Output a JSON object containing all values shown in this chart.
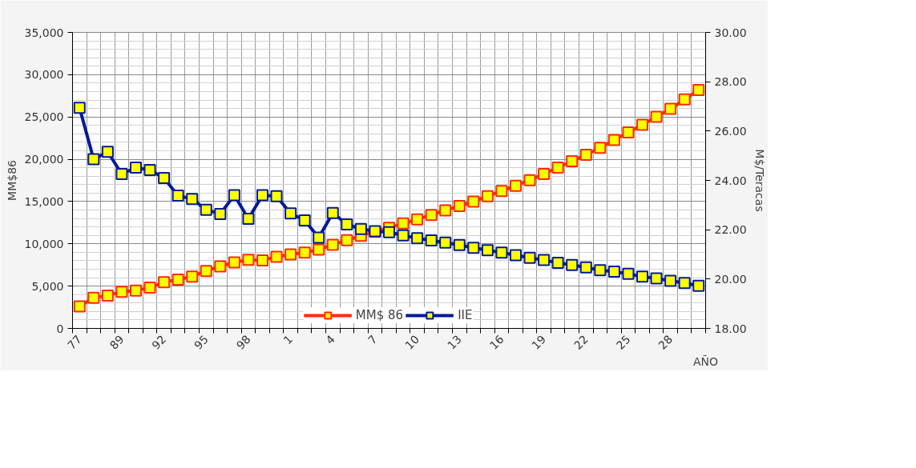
{
  "chart_data": {
    "type": "line",
    "categories": [
      "77",
      null,
      null,
      "89",
      null,
      null,
      "92",
      null,
      null,
      "95",
      null,
      null,
      "98",
      null,
      null,
      "1",
      null,
      null,
      "4",
      null,
      null,
      "7",
      null,
      null,
      "10",
      null,
      null,
      "13",
      null,
      null,
      "16",
      null,
      null,
      "19",
      null,
      null,
      "22",
      null,
      null,
      "25",
      null,
      null,
      "28",
      null,
      null
    ],
    "xlabel": "AÑO",
    "ylabel": "MM$86",
    "y2label": "M$/Teracas",
    "series": [
      {
        "name": "MM$ 86",
        "color": "#ff2a00",
        "values": [
          2590,
          3630,
          3890,
          4330,
          4480,
          4830,
          5460,
          5780,
          6130,
          6790,
          7330,
          7800,
          8120,
          8050,
          8470,
          8750,
          8970,
          9320,
          9890,
          10420,
          10960,
          11430,
          11900,
          12410,
          12890,
          13420,
          13960,
          14470,
          15000,
          15640,
          16240,
          16870,
          17530,
          18260,
          19010,
          19770,
          20530,
          21350,
          22270,
          23180,
          24070,
          25020,
          25960,
          27070,
          28180
        ]
      },
      {
        "name": "IIE",
        "color": "#001a99",
        "axis": "y2",
        "values": [
          26.94,
          24.86,
          25.16,
          24.26,
          24.52,
          24.42,
          24.1,
          23.38,
          23.25,
          22.81,
          22.64,
          23.4,
          22.44,
          23.4,
          23.36,
          22.66,
          22.38,
          21.68,
          22.68,
          22.22,
          22.03,
          21.94,
          21.9,
          21.77,
          21.66,
          21.57,
          21.48,
          21.38,
          21.27,
          21.17,
          21.07,
          20.97,
          20.86,
          20.77,
          20.66,
          20.57,
          20.47,
          20.36,
          20.3,
          20.21,
          20.1,
          20.03,
          19.93,
          19.84,
          19.73
        ]
      }
    ],
    "ylim": [
      0,
      35000
    ],
    "yticks": [
      0,
      {
        "value": 5000,
        "label": "5,000"
      },
      {
        "value": 10000,
        "label": "10,000"
      },
      {
        "value": 15000,
        "label": "15,000"
      },
      {
        "value": 20000,
        "label": "20,000"
      },
      {
        "value": 25000,
        "label": "25,000"
      },
      {
        "value": 30000,
        "label": "30,000"
      },
      {
        "value": 35000,
        "label": "35,000"
      }
    ],
    "y2lim": [
      18,
      30
    ],
    "y2ticks": [
      {
        "value": 18,
        "label": "18.00"
      },
      {
        "value": 20,
        "label": "20.00"
      },
      {
        "value": 22,
        "label": "22.00"
      },
      {
        "value": 24,
        "label": "24.00"
      },
      {
        "value": 26,
        "label": "26.00"
      },
      {
        "value": 28,
        "label": "28.00"
      },
      {
        "value": 30,
        "label": "30.00"
      }
    ],
    "grid": true,
    "legend": "bottom",
    "marker": "square",
    "line_style": "solid"
  }
}
